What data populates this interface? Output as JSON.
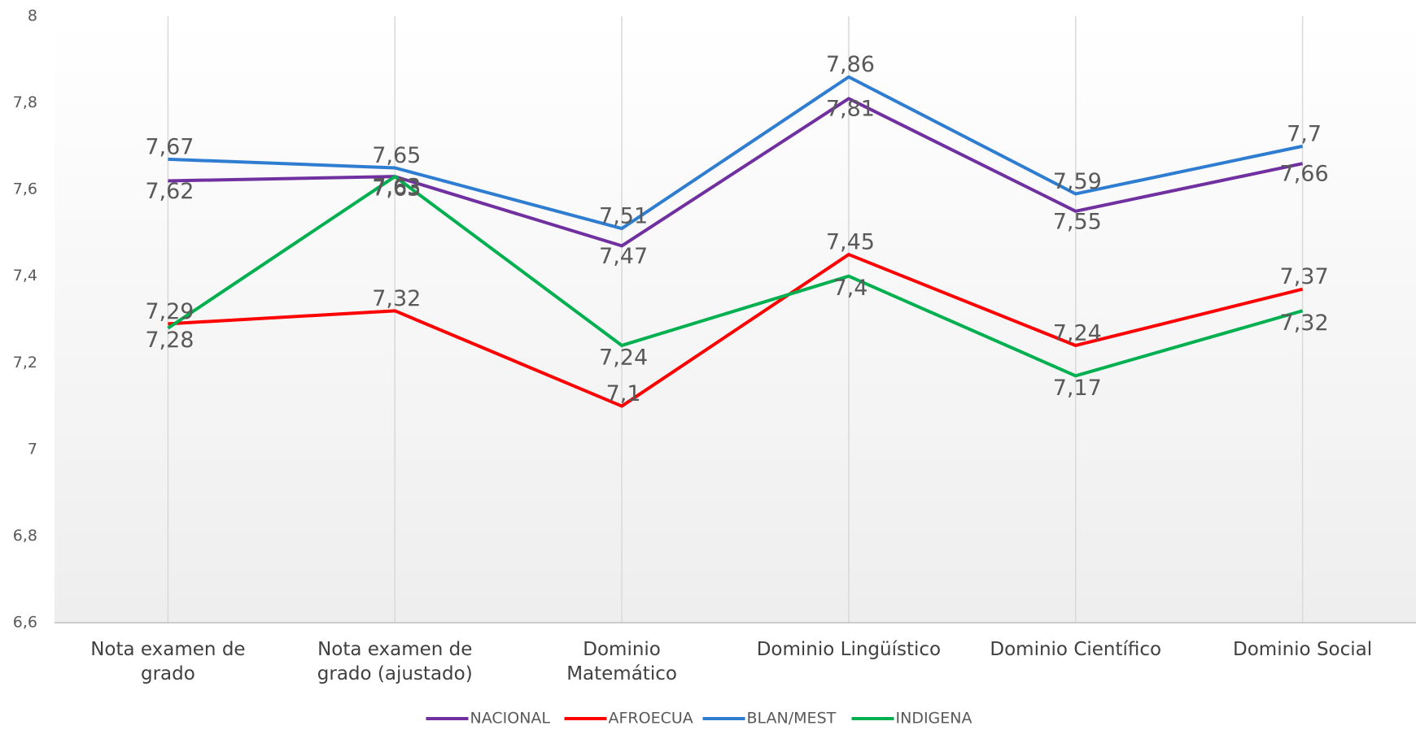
{
  "chart_data": {
    "type": "line",
    "categories": [
      "Nota examen de grado",
      "Nota examen de grado (ajustado)",
      "Dominio Matemático",
      "Dominio Lingüístico",
      "Dominio Científico",
      "Dominio Social"
    ],
    "series": [
      {
        "name": "NACIONAL",
        "color": "#7030a0",
        "values": [
          7.62,
          7.63,
          7.47,
          7.81,
          7.55,
          7.66
        ],
        "value_labels": [
          "7,62",
          "7,63",
          "7,47",
          "7,81",
          "7,55",
          "7,66"
        ]
      },
      {
        "name": "AFROECUA",
        "color": "#ff0000",
        "values": [
          7.29,
          7.32,
          7.1,
          7.45,
          7.24,
          7.37
        ],
        "value_labels": [
          "7,29",
          "7,32",
          "7,1",
          "7,45",
          "7,24",
          "7,37"
        ]
      },
      {
        "name": "BLAN/MEST",
        "color": "#2e7dd1",
        "values": [
          7.67,
          7.65,
          7.51,
          7.86,
          7.59,
          7.7
        ],
        "value_labels": [
          "7,67",
          "7,65",
          "7,51",
          "7,86",
          "7,59",
          "7,7"
        ]
      },
      {
        "name": "INDIGENA",
        "color": "#00b050",
        "values": [
          7.28,
          7.63,
          7.24,
          7.4,
          7.17,
          7.32
        ],
        "value_labels": [
          "7,28",
          "7,63",
          "7,24",
          "7,4",
          "7,17",
          "7,32"
        ]
      }
    ],
    "ylim": [
      6.6,
      8
    ],
    "yticks": [
      {
        "value": 6.6,
        "label": "6,6"
      },
      {
        "value": 6.8,
        "label": "6,8"
      },
      7,
      {
        "value": 7.2,
        "label": "7,2"
      },
      {
        "value": 7.4,
        "label": "7,4"
      },
      {
        "value": 7.6,
        "label": "7,6"
      },
      {
        "value": 7.8,
        "label": "7,8"
      },
      8
    ],
    "grid": true,
    "legend": "bottom"
  }
}
